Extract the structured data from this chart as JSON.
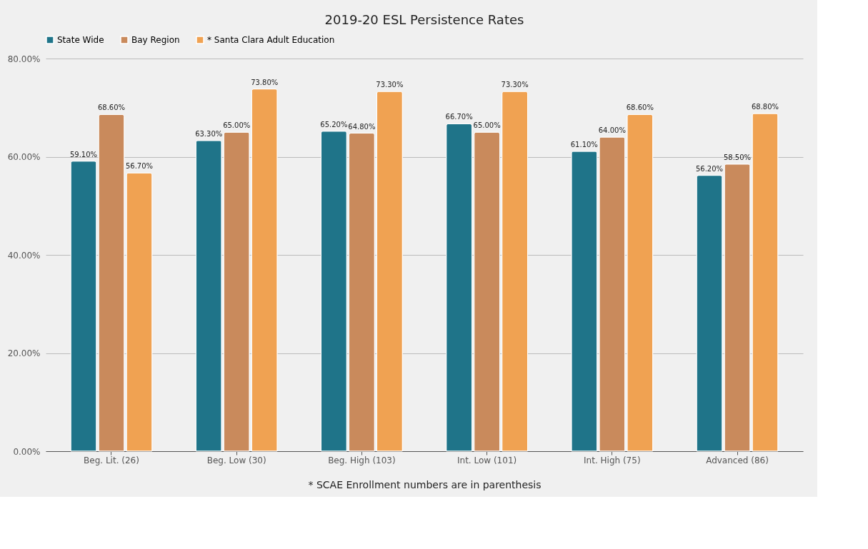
{
  "chart_data": {
    "type": "bar",
    "title": "2019-20 ESL Persistence Rates",
    "xlabel": "* SCAE Enrollment numbers are in parenthesis",
    "categories": [
      "Beg. Lit. (26)",
      "Beg. Low (30)",
      "Beg. High (103)",
      "Int. Low (101)",
      "Int. High (75)",
      "Advanced (86)"
    ],
    "series": [
      {
        "name": "State Wide",
        "color": "#1f7489",
        "values": [
          59.1,
          63.3,
          65.2,
          66.7,
          61.1,
          56.2
        ],
        "value_labels": [
          "59.10%",
          "63.30%",
          "65.20%",
          "66.70%",
          "61.10%",
          "56.20%"
        ]
      },
      {
        "name": "Bay Region",
        "color": "#c98a5c",
        "values": [
          68.6,
          65.0,
          64.8,
          65.0,
          64.0,
          58.5
        ],
        "value_labels": [
          "68.60%",
          "65.00%",
          "64.80%",
          "65.00%",
          "64.00%",
          "58.50%"
        ]
      },
      {
        "name": "* Santa Clara Adult Education",
        "color": "#f0a252",
        "values": [
          56.7,
          73.8,
          73.3,
          73.3,
          68.6,
          68.8
        ],
        "value_labels": [
          "56.70%",
          "73.80%",
          "73.30%",
          "73.30%",
          "68.60%",
          "68.80%"
        ]
      }
    ],
    "ylim": [
      0,
      80
    ],
    "yticks": [
      {
        "value": 0,
        "label": "0.00%"
      },
      {
        "value": 20,
        "label": "20.00%"
      },
      {
        "value": 40,
        "label": "40.00%"
      },
      {
        "value": 60,
        "label": "60.00%"
      },
      {
        "value": 80,
        "label": "80.00%"
      }
    ],
    "grid": "y",
    "legend": "top"
  }
}
